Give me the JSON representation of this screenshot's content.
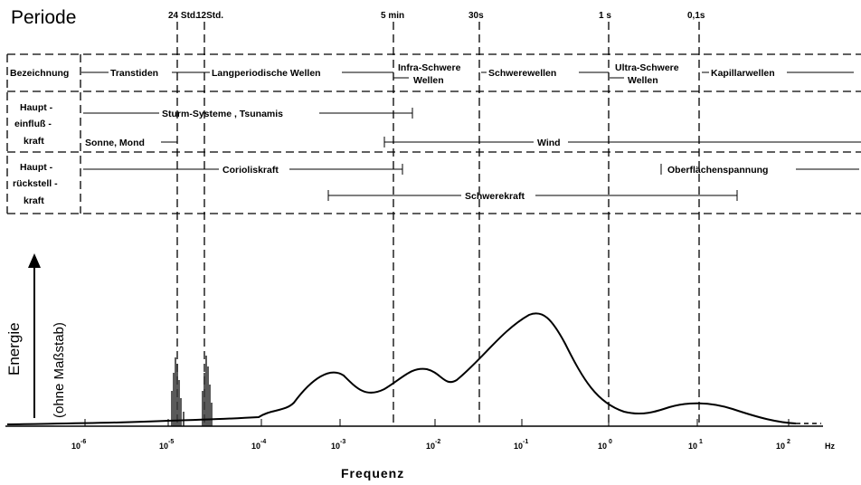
{
  "title": "Periode",
  "periods": [
    "24 Std.",
    "12Std.",
    "5 min",
    "30s",
    "1 s",
    "0,1s"
  ],
  "rows": {
    "bezeichnung": {
      "label": "Bezeichnung",
      "items": [
        "Transtiden",
        "Langperiodische  Wellen",
        "Infra-Schwere",
        "Wellen",
        "Schwerewellen",
        "Ultra-Schwere",
        "Wellen",
        "Kapillarwellen"
      ]
    },
    "haupteinfluss": {
      "label_lines": [
        "Haupt -",
        "einfluß -",
        "kraft"
      ],
      "items": [
        "Sturm-Systeme , Tsunamis",
        "Sonne, Mond",
        "Wind"
      ]
    },
    "hauptrueckstell": {
      "label_lines": [
        "Haupt -",
        "rückstell -",
        "kraft"
      ],
      "items": [
        "Corioliskraft",
        "Oberflächenspannung",
        "Schwerekraft"
      ]
    }
  },
  "y_axis": {
    "label": "Energie",
    "sublabel": "(ohne Maßstab)"
  },
  "x_axis": {
    "label": "Frequenz",
    "unit": "Hz",
    "ticks": [
      {
        "base": "10",
        "exp": "-6"
      },
      {
        "base": "10",
        "exp": "-5"
      },
      {
        "base": "10",
        "exp": "-4"
      },
      {
        "base": "10",
        "exp": "-3"
      },
      {
        "base": "10",
        "exp": "-2"
      },
      {
        "base": "10",
        "exp": "-1"
      },
      {
        "base": "10",
        "exp": " 0"
      },
      {
        "base": "10",
        "exp": " 1"
      },
      {
        "base": "10",
        "exp": " 2"
      }
    ]
  }
}
